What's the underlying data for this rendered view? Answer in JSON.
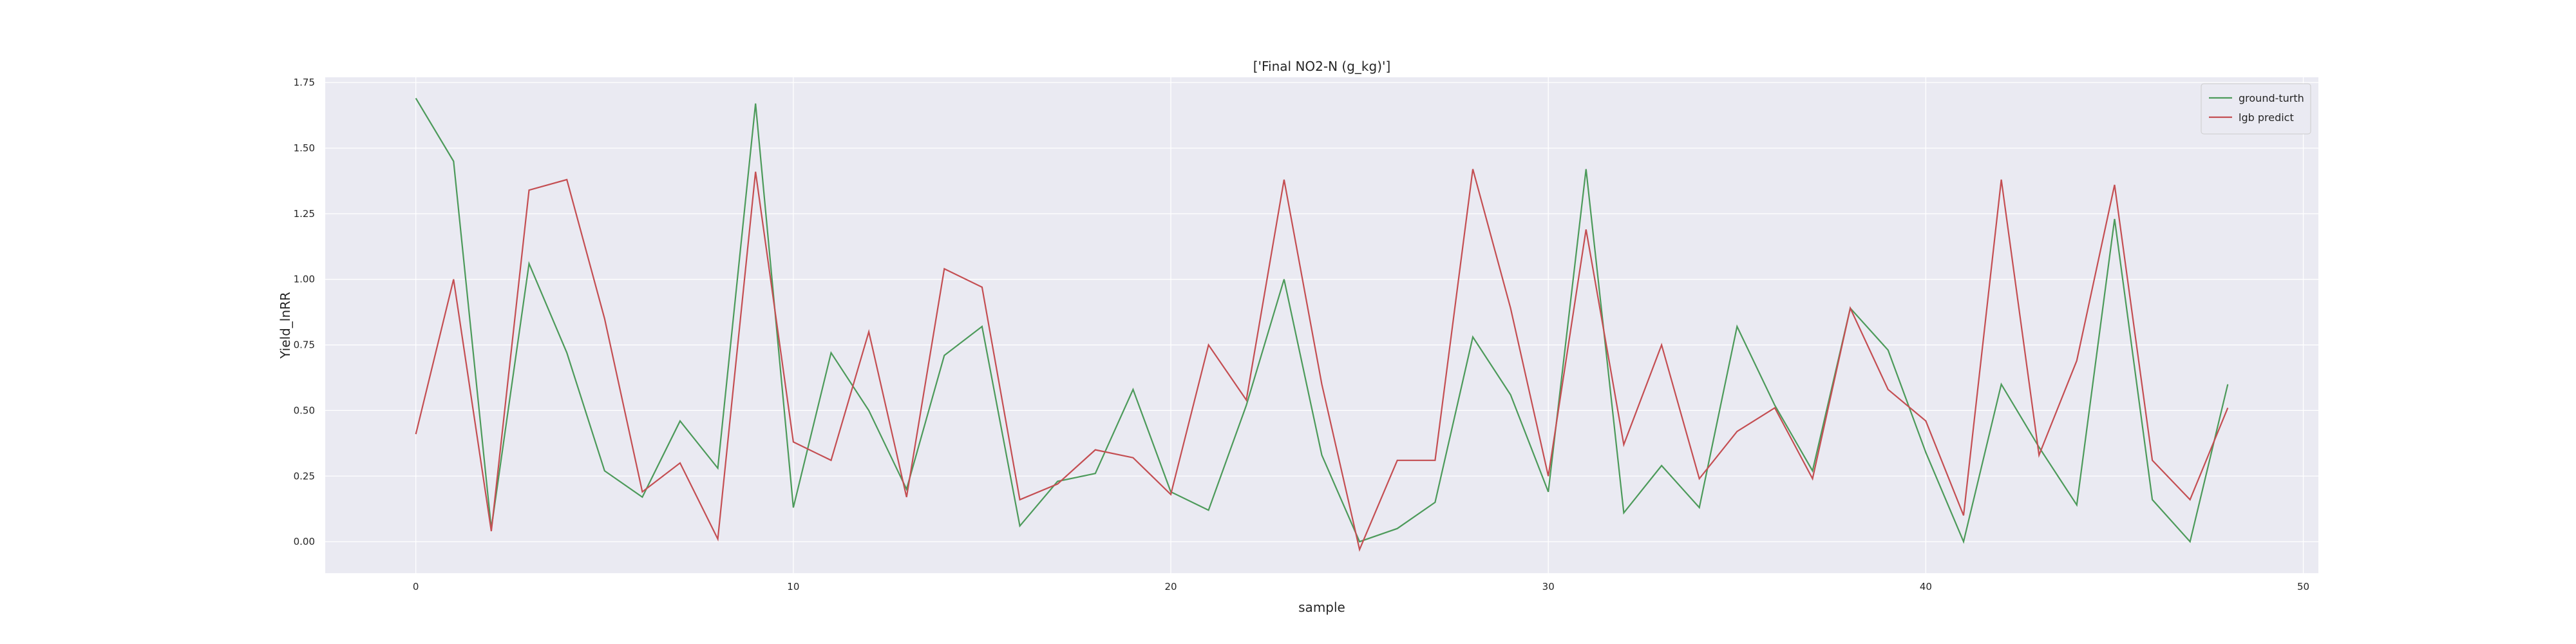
{
  "chart_data": {
    "type": "line",
    "title": "['Final NO2-N (g_kg)']",
    "xlabel": "sample",
    "ylabel": "Yield_lnRR",
    "xlim": [
      -2.4,
      50.4
    ],
    "ylim": [
      -0.12,
      1.77
    ],
    "x_ticks": [
      0,
      10,
      20,
      30,
      40,
      50
    ],
    "y_ticks": [
      0.0,
      0.25,
      0.5,
      0.75,
      1.0,
      1.25,
      1.5,
      1.75
    ],
    "grid": true,
    "legend_position": "top-right",
    "background_color": "#eaeaf2",
    "x": [
      0,
      1,
      2,
      3,
      4,
      5,
      6,
      7,
      8,
      9,
      10,
      11,
      12,
      13,
      14,
      15,
      16,
      17,
      18,
      19,
      20,
      21,
      22,
      23,
      24,
      25,
      26,
      27,
      28,
      29,
      30,
      31,
      32,
      33,
      34,
      35,
      36,
      37,
      38,
      39,
      40,
      41,
      42,
      43,
      44,
      45,
      46,
      47,
      48
    ],
    "series": [
      {
        "name": "ground-turth",
        "color": "#4c9a5a",
        "values": [
          1.69,
          1.45,
          0.05,
          1.06,
          0.72,
          0.27,
          0.17,
          0.46,
          0.28,
          1.67,
          0.13,
          0.72,
          0.5,
          0.2,
          0.71,
          0.82,
          0.06,
          0.23,
          0.26,
          0.58,
          0.19,
          0.12,
          0.52,
          1.0,
          0.33,
          0.0,
          0.05,
          0.15,
          0.78,
          0.56,
          0.19,
          1.42,
          0.11,
          0.29,
          0.13,
          0.82,
          0.52,
          0.27,
          0.89,
          0.73,
          0.34,
          0.0,
          0.6,
          0.36,
          0.14,
          1.23,
          0.16,
          0.0,
          0.6
        ]
      },
      {
        "name": "lgb predict",
        "color": "#c44e52",
        "values": [
          0.41,
          1.0,
          0.04,
          1.34,
          1.38,
          0.85,
          0.19,
          0.3,
          0.01,
          1.41,
          0.38,
          0.31,
          0.8,
          0.17,
          1.04,
          0.97,
          0.16,
          0.22,
          0.35,
          0.32,
          0.18,
          0.75,
          0.54,
          1.38,
          0.6,
          -0.03,
          0.31,
          0.31,
          1.42,
          0.89,
          0.25,
          1.19,
          0.37,
          0.75,
          0.24,
          0.42,
          0.51,
          0.24,
          0.89,
          0.58,
          0.46,
          0.1,
          1.38,
          0.33,
          0.69,
          1.36,
          0.31,
          0.16,
          0.51
        ]
      }
    ]
  }
}
